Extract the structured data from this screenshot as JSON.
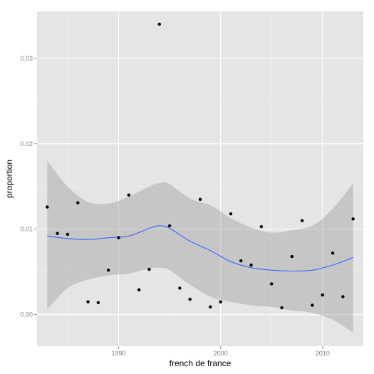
{
  "chart_data": {
    "type": "scatter",
    "title": "",
    "xlabel": "french de france",
    "ylabel": "proportion",
    "xlim": [
      1982,
      2014
    ],
    "ylim": [
      -0.0037,
      0.0355
    ],
    "x_ticks": [
      1990,
      2000,
      2010
    ],
    "x_tick_labels": [
      "1990",
      "2000",
      "2010"
    ],
    "y_ticks": [
      0.0,
      0.01,
      0.02,
      0.03
    ],
    "y_tick_labels": [
      "0.00",
      "0.01",
      "0.02",
      "0.03"
    ],
    "grid": true,
    "legend": "none",
    "colors": {
      "panel_bg": "#e5e5e5",
      "grid_major": "#ffffff",
      "grid_minor": "#f2f2f2",
      "points": "#000000",
      "smooth_line": "#3366ff",
      "ribbon": "#999999"
    },
    "points": [
      {
        "x": 1983,
        "y": 0.0126
      },
      {
        "x": 1984,
        "y": 0.0095
      },
      {
        "x": 1985,
        "y": 0.0094
      },
      {
        "x": 1986,
        "y": 0.0131
      },
      {
        "x": 1987,
        "y": 0.0015
      },
      {
        "x": 1988,
        "y": 0.0014
      },
      {
        "x": 1989,
        "y": 0.0052
      },
      {
        "x": 1990,
        "y": 0.009
      },
      {
        "x": 1991,
        "y": 0.014
      },
      {
        "x": 1992,
        "y": 0.0029
      },
      {
        "x": 1993,
        "y": 0.0053
      },
      {
        "x": 1994,
        "y": 0.034
      },
      {
        "x": 1995,
        "y": 0.0104
      },
      {
        "x": 1996,
        "y": 0.0031
      },
      {
        "x": 1997,
        "y": 0.0018
      },
      {
        "x": 1998,
        "y": 0.0135
      },
      {
        "x": 1999,
        "y": 0.0009
      },
      {
        "x": 2000,
        "y": 0.0015
      },
      {
        "x": 2001,
        "y": 0.0118
      },
      {
        "x": 2002,
        "y": 0.0063
      },
      {
        "x": 2003,
        "y": 0.0058
      },
      {
        "x": 2004,
        "y": 0.0103
      },
      {
        "x": 2005,
        "y": 0.0036
      },
      {
        "x": 2006,
        "y": 0.0008
      },
      {
        "x": 2007,
        "y": 0.0068
      },
      {
        "x": 2008,
        "y": 0.011
      },
      {
        "x": 2009,
        "y": 0.0011
      },
      {
        "x": 2010,
        "y": 0.0023
      },
      {
        "x": 2011,
        "y": 0.0072
      },
      {
        "x": 2012,
        "y": 0.0021
      },
      {
        "x": 2013,
        "y": 0.0112
      }
    ],
    "smooth": {
      "x": [
        1983,
        1985,
        1987,
        1989,
        1991,
        1993,
        1994,
        1995,
        1997,
        1999,
        2001,
        2003,
        2005,
        2007,
        2009,
        2011,
        2013
      ],
      "y": [
        0.0092,
        0.0089,
        0.0088,
        0.009,
        0.0092,
        0.0101,
        0.0104,
        0.0101,
        0.0086,
        0.0075,
        0.0062,
        0.0055,
        0.0052,
        0.0051,
        0.0052,
        0.0058,
        0.0067
      ],
      "lower": [
        0.0006,
        0.0031,
        0.0041,
        0.0046,
        0.0048,
        0.0054,
        0.0055,
        0.0052,
        0.0035,
        0.0021,
        0.0015,
        0.0011,
        0.0009,
        0.0005,
        0.0002,
        -0.0006,
        -0.0021
      ],
      "upper": [
        0.018,
        0.015,
        0.0132,
        0.013,
        0.0138,
        0.015,
        0.0154,
        0.0153,
        0.0136,
        0.0128,
        0.0113,
        0.0102,
        0.0096,
        0.0099,
        0.0104,
        0.0124,
        0.0154
      ]
    }
  }
}
